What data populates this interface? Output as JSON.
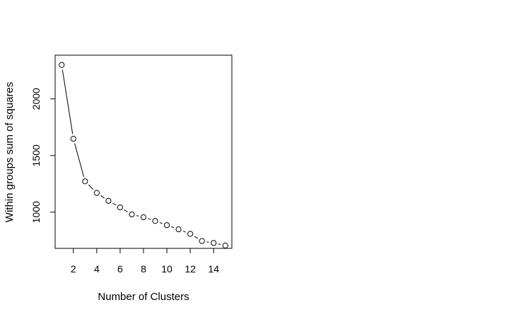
{
  "chart_data": {
    "type": "line",
    "title": "",
    "xlabel": "Number of Clusters",
    "ylabel": "Within groups sum of squares",
    "x": [
      1,
      2,
      3,
      4,
      5,
      6,
      7,
      8,
      9,
      10,
      11,
      12,
      13,
      14,
      15
    ],
    "series": [
      {
        "values": [
          2300,
          1648,
          1272,
          1170,
          1100,
          1042,
          980,
          955,
          922,
          885,
          848,
          808,
          745,
          728,
          705
        ]
      }
    ],
    "xticks": [
      "2",
      "4",
      "6",
      "8",
      "10",
      "12",
      "14"
    ],
    "xtick_values": [
      2,
      4,
      6,
      8,
      10,
      12,
      14
    ],
    "yticks": [
      "1000",
      "1500",
      "2000"
    ],
    "ytick_values": [
      1000,
      1500,
      2000
    ],
    "xlim": [
      0.44,
      15.56
    ],
    "ylim": [
      680,
      2386
    ],
    "marker": "open-circle",
    "line_style": "solid, interrupted at points",
    "grid": false,
    "colors": {
      "line": "#000000",
      "marker_stroke": "#000000",
      "marker_fill": "#ffffff",
      "background": "#ffffff"
    }
  }
}
